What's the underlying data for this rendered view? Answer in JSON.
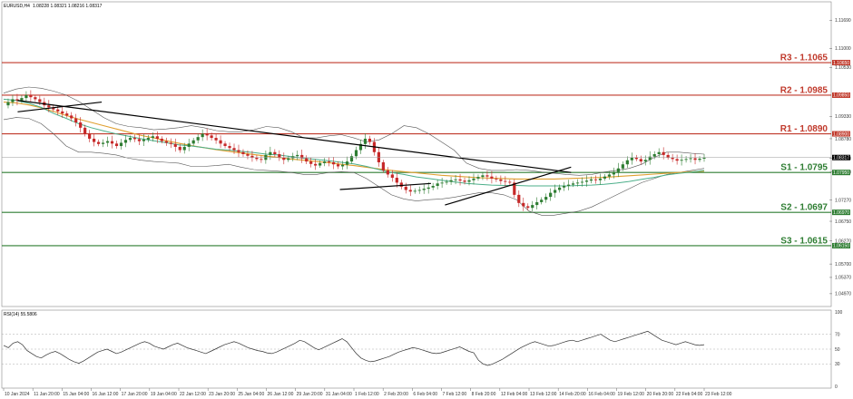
{
  "header": {
    "symbol": "EURUSD,H4",
    "ohlc": "1.08228 1.08321 1.08216 1.08317",
    "rsi_label": "RSI(14) 55.5806"
  },
  "colors": {
    "resistance": "#c0392b",
    "support": "#2e7d32",
    "bull": "#2e7d32",
    "bear": "#c62828",
    "trendline": "#000000",
    "bollinger": "#555555",
    "ma_fast": "#4caf8a",
    "ma_slow": "#e0a030"
  },
  "chart_data": [
    {
      "type": "candlestick",
      "name": "EURUSD H4",
      "ylim": [
        1.047,
        1.121
      ],
      "y_ticks": [
        "1.11690",
        "1.11000",
        "1.10530",
        "1.09330",
        "1.08780",
        "1.08300",
        "1.07960",
        "1.07270",
        "1.06750",
        "1.06270",
        "1.05700",
        "1.05370",
        "1.04970"
      ],
      "x_labels": [
        "10 Jan 2024",
        "11 Jan 20:00",
        "15 Jan 04:00",
        "16 Jan 12:00",
        "17 Jan 20:00",
        "19 Jan 04:00",
        "22 Jan 12:00",
        "23 Jan 20:00",
        "25 Jan 04:00",
        "26 Jan 12:00",
        "29 Jan 20:00",
        "31 Jan 04:00",
        "1 Feb 12:00",
        "2 Feb 20:00",
        "6 Feb 04:00",
        "7 Feb 12:00",
        "8 Feb 20:00",
        "12 Feb 04:00",
        "13 Feb 12:00",
        "14 Feb 20:00",
        "16 Feb 04:00",
        "19 Feb 12:00",
        "20 Feb 20:00",
        "22 Feb 04:00",
        "23 Feb 12:00"
      ],
      "current_price": "1.08317",
      "levels": [
        {
          "name": "R3",
          "label": "R3 - 1.1065",
          "value": 1.1065,
          "kind": "resistance",
          "tag": "1.10650"
        },
        {
          "name": "R2",
          "label": "R2 - 1.0985",
          "value": 1.0985,
          "kind": "resistance",
          "tag": "1.09850"
        },
        {
          "name": "R1",
          "label": "R1 - 1.0890",
          "value": 1.089,
          "kind": "resistance",
          "tag": "1.08900"
        },
        {
          "name": "S1",
          "label": "S1 - 1.0795",
          "value": 1.0795,
          "kind": "support",
          "tag": "1.07950"
        },
        {
          "name": "S2",
          "label": "S2 - 1.0697",
          "value": 1.0697,
          "kind": "support",
          "tag": "1.06970"
        },
        {
          "name": "S3",
          "label": "S3 - 1.0615",
          "value": 1.0615,
          "kind": "support",
          "tag": "1.06150"
        }
      ],
      "close_path": [
        1.096,
        1.0968,
        1.0975,
        1.0972,
        1.0978,
        1.0985,
        1.098,
        1.0975,
        1.0968,
        1.096,
        1.0955,
        1.095,
        1.0945,
        1.094,
        1.0935,
        1.0928,
        1.0918,
        1.0905,
        1.089,
        1.0878,
        1.087,
        1.0865,
        1.0868,
        1.0872,
        1.0866,
        1.086,
        1.0868,
        1.0875,
        1.088,
        1.0877,
        1.0872,
        1.0876,
        1.088,
        1.0884,
        1.0878,
        1.0872,
        1.0868,
        1.0865,
        1.0858,
        1.085,
        1.0858,
        1.0866,
        1.0874,
        1.0882,
        1.089,
        1.0886,
        1.088,
        1.0874,
        1.0866,
        1.086,
        1.0855,
        1.085,
        1.0845,
        1.084,
        1.0836,
        1.0832,
        1.0828,
        1.0826,
        1.0838,
        1.0845,
        1.084,
        1.0832,
        1.0826,
        1.083,
        1.0835,
        1.0838,
        1.083,
        1.0822,
        1.0816,
        1.0812,
        1.0818,
        1.0822,
        1.082,
        1.0815,
        1.081,
        1.0814,
        1.0822,
        1.0835,
        1.085,
        1.0865,
        1.0878,
        1.087,
        1.0845,
        1.082,
        1.08,
        1.079,
        1.0782,
        1.077,
        1.076,
        1.0752,
        1.0748,
        1.075,
        1.0752,
        1.0755,
        1.0758,
        1.0762,
        1.0768,
        1.077,
        1.0772,
        1.0776,
        1.0778,
        1.0775,
        1.0772,
        1.0776,
        1.078,
        1.0784,
        1.0788,
        1.0785,
        1.078,
        1.0778,
        1.0774,
        1.0772,
        1.077,
        1.074,
        1.072,
        1.0712,
        1.0708,
        1.0715,
        1.0722,
        1.0728,
        1.0735,
        1.0745,
        1.0752,
        1.0758,
        1.0762,
        1.0765,
        1.0768,
        1.077,
        1.0772,
        1.0775,
        1.0778,
        1.0776,
        1.078,
        1.0785,
        1.079,
        1.0796,
        1.0805,
        1.0815,
        1.0825,
        1.0832,
        1.0828,
        1.0822,
        1.0826,
        1.0834,
        1.084,
        1.0845,
        1.0838,
        1.0832,
        1.0828,
        1.0824,
        1.0826,
        1.0828,
        1.083,
        1.0826,
        1.0829,
        1.0832
      ],
      "bollinger_upper": [
        1.099,
        1.1,
        1.1005,
        1.1002,
        1.0995,
        1.0985,
        1.097,
        1.095,
        1.093,
        1.0915,
        1.0908,
        1.0905,
        1.09,
        1.0902,
        1.0905,
        1.091,
        1.0905,
        1.0898,
        1.0895,
        1.0895,
        1.09,
        1.0908,
        1.0905,
        1.0895,
        1.088,
        1.088,
        1.0885,
        1.0888,
        1.088,
        1.087,
        1.0875,
        1.089,
        1.091,
        1.0905,
        1.089,
        1.087,
        1.085,
        1.0818,
        1.0805,
        1.08,
        1.08,
        1.0802,
        1.08,
        1.0796,
        1.0793,
        1.079,
        1.0788,
        1.079,
        1.0796,
        1.08,
        1.0805,
        1.0815,
        1.0832,
        1.0845,
        1.0845,
        1.0842,
        1.084
      ],
      "bollinger_lower": [
        1.0925,
        1.093,
        1.0928,
        1.0915,
        1.089,
        1.086,
        1.0845,
        1.0845,
        1.0842,
        1.0838,
        1.083,
        1.0825,
        1.0822,
        1.082,
        1.0818,
        1.081,
        1.081,
        1.0812,
        1.0815,
        1.0808,
        1.0802,
        1.08,
        1.0798,
        1.0795,
        1.079,
        1.079,
        1.0795,
        1.0797,
        1.0795,
        1.078,
        1.076,
        1.074,
        1.073,
        1.0725,
        1.0728,
        1.073,
        1.0734,
        1.074,
        1.0745,
        1.0745,
        1.074,
        1.0728,
        1.07,
        1.069,
        1.069,
        1.0695,
        1.07,
        1.071,
        1.0725,
        1.074,
        1.0755,
        1.077,
        1.078,
        1.079,
        1.0795,
        1.08,
        1.0805
      ],
      "ma_fast": [
        1.0975,
        1.0972,
        1.0965,
        1.0955,
        1.094,
        1.0928,
        1.0915,
        1.0905,
        1.0897,
        1.089,
        1.0884,
        1.0878,
        1.0873,
        1.0868,
        1.0863,
        1.086,
        1.0856,
        1.0852,
        1.085,
        1.0847,
        1.0844,
        1.084,
        1.0838,
        1.0834,
        1.083,
        1.0827,
        1.0824,
        1.082,
        1.0816,
        1.081,
        1.0802,
        1.0795,
        1.079,
        1.0784,
        1.078,
        1.0776,
        1.0772,
        1.0768,
        1.0766,
        1.0764,
        1.0763,
        1.0763,
        1.0762,
        1.0762,
        1.0762,
        1.0762,
        1.0763,
        1.0764,
        1.0766,
        1.0769,
        1.0773,
        1.0778,
        1.0783,
        1.0789,
        1.0793,
        1.0796,
        1.08
      ],
      "ma_slow": [
        1.0968,
        1.0966,
        1.0961,
        1.0954,
        1.0945,
        1.0935,
        1.0926,
        1.0918,
        1.091,
        1.0902,
        1.0894,
        1.0886,
        1.088,
        1.0873,
        1.0867,
        1.0861,
        1.0856,
        1.0851,
        1.0847,
        1.0843,
        1.0839,
        1.0835,
        1.0832,
        1.0828,
        1.0825,
        1.0822,
        1.0819,
        1.0815,
        1.0812,
        1.0808,
        1.0804,
        1.08,
        1.0797,
        1.0794,
        1.0791,
        1.0788,
        1.0786,
        1.0784,
        1.0782,
        1.0781,
        1.078,
        1.0779,
        1.0779,
        1.0779,
        1.0779,
        1.078,
        1.0781,
        1.0782,
        1.0783,
        1.0785,
        1.0787,
        1.0789,
        1.0791,
        1.0793,
        1.0795,
        1.0797,
        1.0798
      ],
      "trendlines": [
        {
          "name": "downtrend-main",
          "from": [
            0.02,
            1.0972
          ],
          "to": [
            0.81,
            1.0795
          ]
        },
        {
          "name": "downtrend-short",
          "from": [
            0.02,
            1.0944
          ],
          "to": [
            0.14,
            1.0968
          ]
        },
        {
          "name": "uptrend-feb",
          "from": [
            0.63,
            1.0715
          ],
          "to": [
            0.81,
            1.0808
          ]
        },
        {
          "name": "channel-feb",
          "from": [
            0.48,
            1.0753
          ],
          "to": [
            0.61,
            1.0768
          ]
        }
      ]
    },
    {
      "type": "line",
      "name": "RSI(14)",
      "ylim": [
        0,
        100
      ],
      "y_ticks": [
        100,
        70,
        50,
        30,
        0
      ],
      "values": [
        55,
        52,
        58,
        60,
        56,
        48,
        44,
        40,
        38,
        42,
        45,
        47,
        44,
        40,
        36,
        33,
        31,
        34,
        38,
        42,
        46,
        48,
        50,
        47,
        44,
        46,
        49,
        52,
        55,
        58,
        60,
        58,
        54,
        52,
        50,
        53,
        56,
        58,
        55,
        52,
        50,
        48,
        46,
        44,
        47,
        50,
        53,
        56,
        58,
        60,
        58,
        55,
        52,
        50,
        48,
        47,
        45,
        44,
        46,
        49,
        52,
        55,
        58,
        62,
        60,
        56,
        52,
        49,
        52,
        55,
        58,
        61,
        64,
        60,
        52,
        44,
        38,
        35,
        33,
        34,
        36,
        38,
        40,
        43,
        46,
        48,
        50,
        52,
        51,
        49,
        47,
        45,
        44,
        45,
        47,
        49,
        51,
        53,
        50,
        47,
        45,
        35,
        30,
        28,
        30,
        33,
        36,
        40,
        44,
        48,
        52,
        55,
        58,
        60,
        58,
        56,
        54,
        55,
        57,
        59,
        61,
        62,
        60,
        62,
        64,
        66,
        68,
        70,
        66,
        62,
        60,
        62,
        64,
        66,
        68,
        70,
        72,
        74,
        70,
        66,
        62,
        60,
        58,
        56,
        58,
        60,
        58,
        56,
        55,
        56
      ]
    }
  ]
}
